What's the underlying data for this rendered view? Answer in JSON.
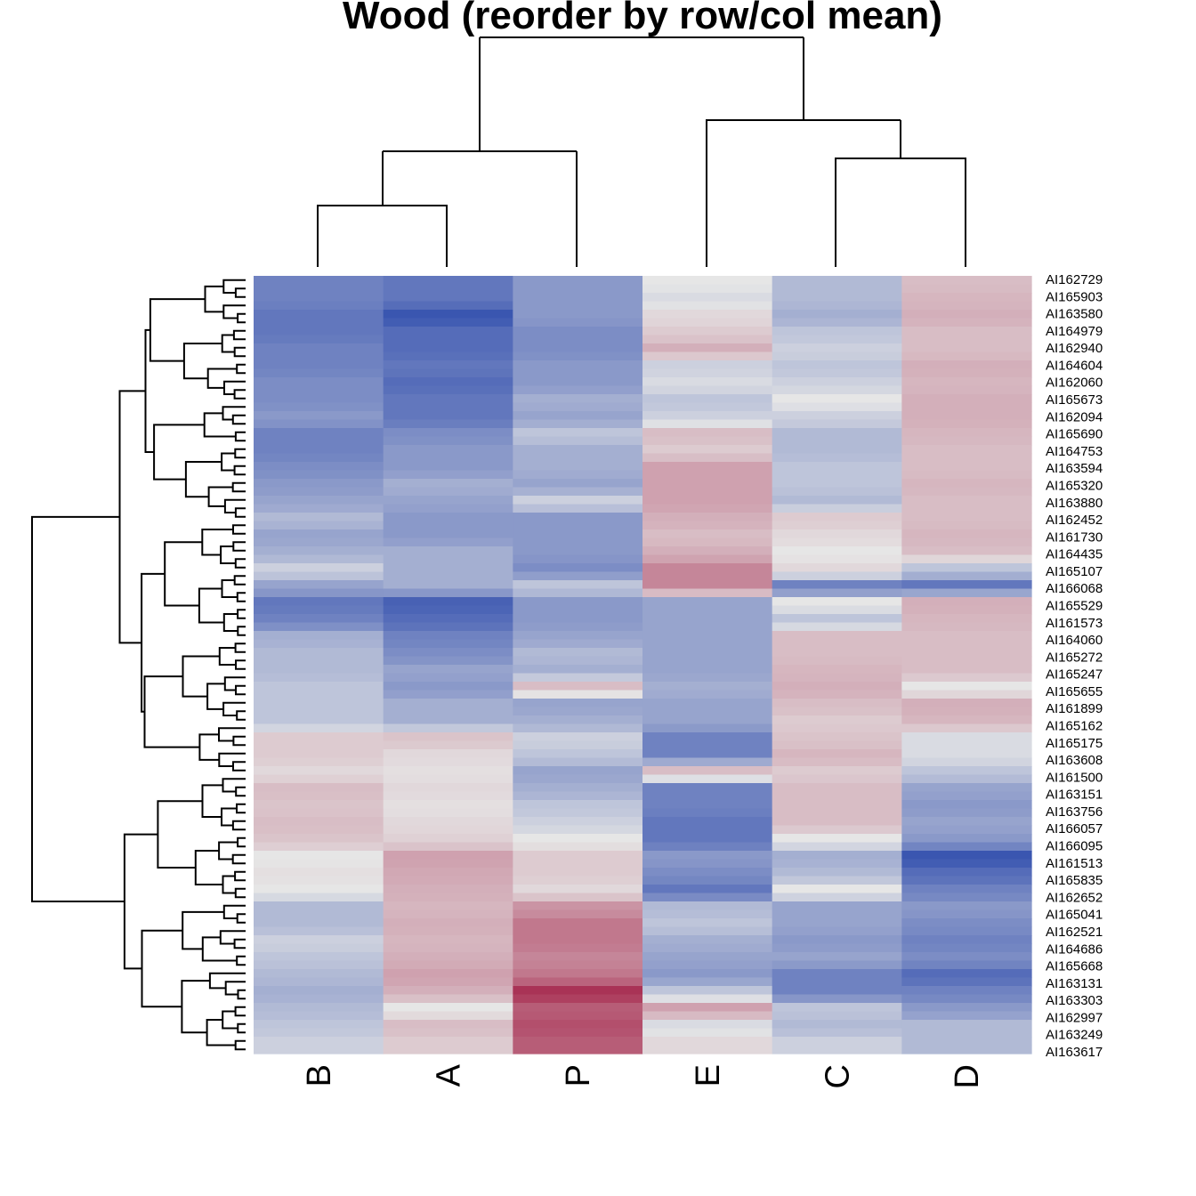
{
  "chart_data": {
    "type": "heatmap",
    "title": "Wood (reorder by row/col mean)",
    "columns": [
      "B",
      "A",
      "P",
      "E",
      "C",
      "D"
    ],
    "row_labels": [
      "AI162729",
      "AI165903",
      "AI163580",
      "AI164979",
      "AI162940",
      "AI164604",
      "AI162060",
      "AI165673",
      "AI162094",
      "AI165690",
      "AI164753",
      "AI163594",
      "AI165320",
      "AI163880",
      "AI162452",
      "AI161730",
      "AI164435",
      "AI165107",
      "AI166068",
      "AI165529",
      "AI161573",
      "AI164060",
      "AI165272",
      "AI165247",
      "AI165655",
      "AI161899",
      "AI165162",
      "AI165175",
      "AI163608",
      "AI161500",
      "AI163151",
      "AI163756",
      "AI166057",
      "AI166095",
      "AI161513",
      "AI165835",
      "AI162652",
      "AI165041",
      "AI162521",
      "AI164686",
      "AI165668",
      "AI163131",
      "AI163303",
      "AI162997",
      "AI163249",
      "AI163617"
    ],
    "color_scale": {
      "low": "#2040a8",
      "mid": "#e6e6e6",
      "high": "#a01840",
      "range": [
        -1.5,
        1.5
      ]
    },
    "values": [
      [
        -0.9,
        -1.0,
        -0.7,
        0.0,
        -0.4,
        0.3
      ],
      [
        -0.9,
        -1.0,
        -0.7,
        -0.1,
        -0.4,
        0.35
      ],
      [
        -1.0,
        -1.3,
        -0.7,
        0.1,
        -0.5,
        0.4
      ],
      [
        -1.0,
        -1.1,
        -0.8,
        0.2,
        -0.3,
        0.3
      ],
      [
        -0.9,
        -1.1,
        -0.8,
        0.4,
        -0.2,
        0.3
      ],
      [
        -0.9,
        -1.0,
        -0.7,
        -0.2,
        -0.3,
        0.4
      ],
      [
        -0.8,
        -1.1,
        -0.7,
        -0.1,
        -0.2,
        0.35
      ],
      [
        -0.8,
        -1.0,
        -0.5,
        -0.3,
        0.0,
        0.4
      ],
      [
        -0.7,
        -1.0,
        -0.6,
        -0.2,
        -0.2,
        0.4
      ],
      [
        -0.9,
        -0.8,
        -0.3,
        0.3,
        -0.4,
        0.35
      ],
      [
        -0.9,
        -0.7,
        -0.5,
        0.2,
        -0.4,
        0.3
      ],
      [
        -0.8,
        -0.7,
        -0.5,
        0.5,
        -0.3,
        0.3
      ],
      [
        -0.7,
        -0.5,
        -0.6,
        0.5,
        -0.3,
        0.35
      ],
      [
        -0.6,
        -0.6,
        -0.2,
        0.5,
        -0.4,
        0.3
      ],
      [
        -0.4,
        -0.7,
        -0.7,
        0.4,
        0.2,
        0.3
      ],
      [
        -0.6,
        -0.7,
        -0.7,
        0.3,
        0.1,
        0.35
      ],
      [
        -0.5,
        -0.5,
        -0.7,
        0.4,
        0.0,
        0.3
      ],
      [
        -0.2,
        -0.5,
        -0.8,
        0.7,
        0.1,
        -0.3
      ],
      [
        -0.6,
        -0.5,
        -0.3,
        0.7,
        -0.9,
        -1.0
      ],
      [
        -1.0,
        -1.2,
        -0.7,
        -0.6,
        0.0,
        0.4
      ],
      [
        -0.9,
        -1.1,
        -0.7,
        -0.6,
        -0.3,
        0.35
      ],
      [
        -0.5,
        -0.9,
        -0.6,
        -0.6,
        0.3,
        0.3
      ],
      [
        -0.4,
        -0.8,
        -0.4,
        -0.6,
        0.3,
        0.3
      ],
      [
        -0.4,
        -0.6,
        -0.5,
        -0.6,
        0.35,
        0.3
      ],
      [
        -0.3,
        -0.7,
        0.3,
        -0.5,
        0.4,
        0.0
      ],
      [
        -0.3,
        -0.5,
        -0.6,
        -0.6,
        0.3,
        0.4
      ],
      [
        -0.3,
        -0.5,
        -0.5,
        -0.6,
        0.2,
        0.35
      ],
      [
        0.2,
        0.25,
        -0.2,
        -0.9,
        0.25,
        -0.1
      ],
      [
        0.2,
        0.1,
        -0.3,
        -0.9,
        0.35,
        -0.1
      ],
      [
        0.1,
        0.05,
        -0.6,
        0.3,
        0.2,
        -0.3
      ],
      [
        0.3,
        0.1,
        -0.5,
        -0.9,
        0.3,
        -0.6
      ],
      [
        0.25,
        0.05,
        -0.3,
        -0.9,
        0.3,
        -0.7
      ],
      [
        0.3,
        0.1,
        -0.2,
        -1.0,
        0.3,
        -0.6
      ],
      [
        0.25,
        0.15,
        0.0,
        -1.0,
        0.0,
        -0.7
      ],
      [
        0.0,
        0.5,
        0.2,
        -0.7,
        -0.5,
        -1.3
      ],
      [
        0.05,
        0.45,
        0.2,
        -0.8,
        -0.4,
        -1.1
      ],
      [
        0.0,
        0.4,
        0.1,
        -1.0,
        0.0,
        -0.9
      ],
      [
        -0.4,
        0.35,
        0.6,
        -0.4,
        -0.6,
        -0.7
      ],
      [
        -0.4,
        0.4,
        0.8,
        -0.3,
        -0.6,
        -0.8
      ],
      [
        -0.2,
        0.35,
        0.8,
        -0.5,
        -0.7,
        -0.9
      ],
      [
        -0.3,
        0.4,
        0.7,
        -0.6,
        -0.6,
        -0.8
      ],
      [
        -0.4,
        0.5,
        0.8,
        -0.7,
        -0.9,
        -1.1
      ],
      [
        -0.5,
        0.4,
        1.3,
        -0.3,
        -0.9,
        -0.9
      ],
      [
        -0.4,
        0.0,
        1.0,
        0.5,
        -0.3,
        -0.7
      ],
      [
        -0.3,
        0.3,
        1.1,
        -0.1,
        -0.4,
        -0.4
      ],
      [
        -0.2,
        0.2,
        1.0,
        0.1,
        -0.2,
        -0.4
      ]
    ]
  }
}
